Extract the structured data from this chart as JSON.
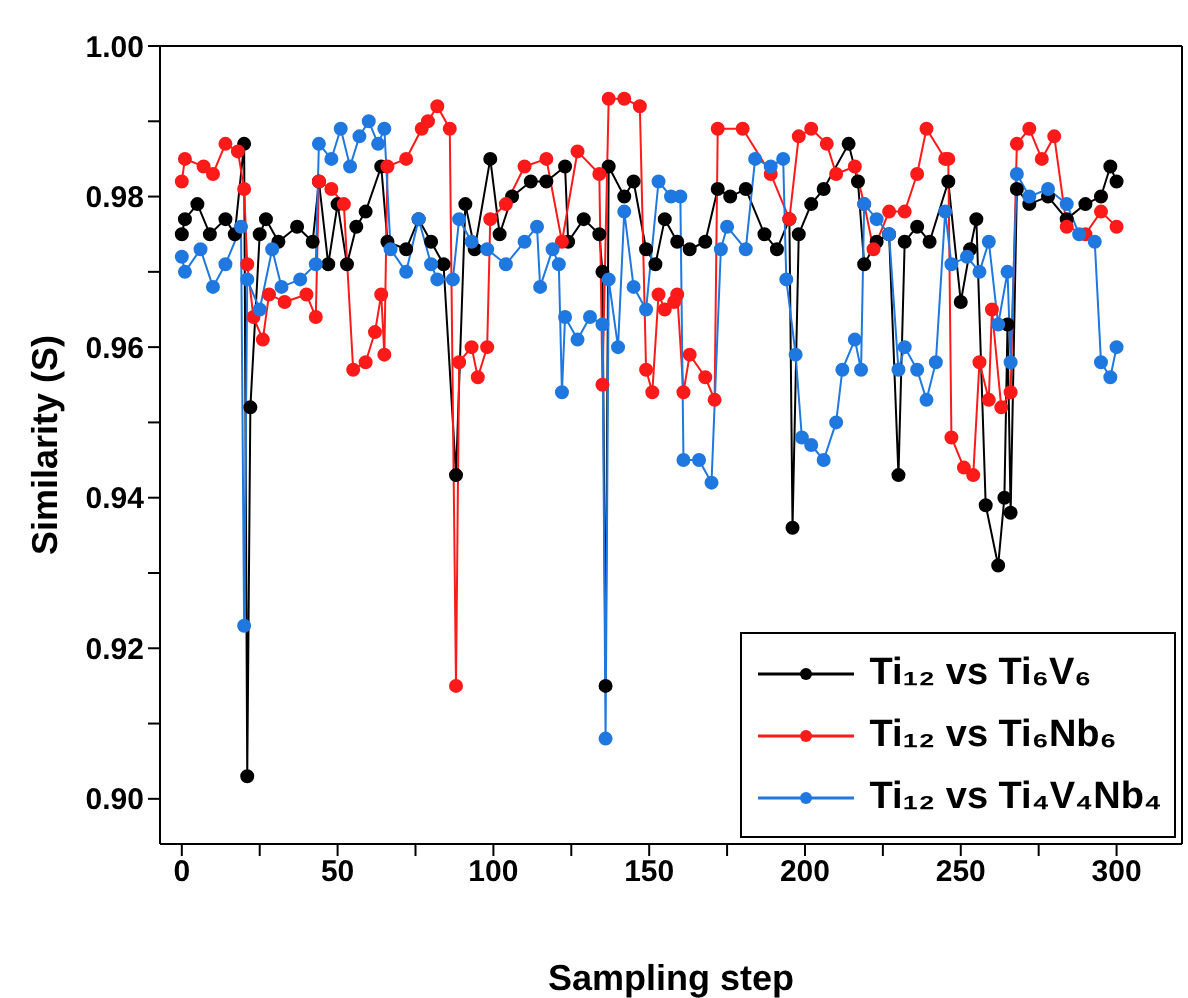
{
  "chart_data": {
    "type": "line",
    "xlabel": "Sampling step",
    "ylabel": "Similarity (S)",
    "marker": "circle",
    "line_style": "solid",
    "legend": "bottom right",
    "grid": false,
    "xlim": [
      -7,
      321
    ],
    "ylim": [
      0.894,
      1.0
    ],
    "xticks": [
      0,
      {
        "value": 25,
        "label": null
      },
      50,
      {
        "value": 75,
        "label": null
      },
      100,
      {
        "value": 125,
        "label": null
      },
      150,
      {
        "value": 175,
        "label": null
      },
      200,
      {
        "value": 225,
        "label": null
      },
      250,
      {
        "value": 275,
        "label": null
      },
      300
    ],
    "yticks": [
      {
        "value": 0.9,
        "label": "0.90"
      },
      {
        "value": 0.91,
        "label": null
      },
      {
        "value": 0.92,
        "label": "0.92"
      },
      {
        "value": 0.93,
        "label": null
      },
      {
        "value": 0.94,
        "label": "0.94"
      },
      {
        "value": 0.95,
        "label": null
      },
      {
        "value": 0.96,
        "label": "0.96"
      },
      {
        "value": 0.97,
        "label": null
      },
      {
        "value": 0.98,
        "label": "0.98"
      },
      {
        "value": 0.99,
        "label": null
      },
      {
        "value": 1.0,
        "label": "1.00"
      }
    ],
    "series": [
      {
        "name": "Ti₁₂ vs Ti₆V₆",
        "color": "#000000",
        "x": [
          0,
          1,
          5,
          9,
          14,
          17,
          20,
          21,
          22,
          25,
          27,
          31,
          37,
          42,
          44,
          47,
          50,
          53,
          56,
          59,
          64,
          66,
          72,
          76,
          80,
          84,
          88,
          91,
          94,
          99,
          102,
          106,
          112,
          117,
          123,
          124,
          129,
          134,
          135,
          136,
          137,
          142,
          145,
          149,
          152,
          155,
          159,
          163,
          168,
          172,
          176,
          181,
          187,
          191,
          195,
          196,
          198,
          202,
          206,
          214,
          217,
          219,
          223,
          227,
          230,
          232,
          236,
          240,
          246,
          250,
          253,
          255,
          258,
          262,
          264,
          265,
          266,
          268,
          272,
          278,
          284,
          290,
          295,
          298,
          300
        ],
        "values": [
          0.975,
          0.977,
          0.979,
          0.975,
          0.977,
          0.975,
          0.987,
          0.903,
          0.952,
          0.975,
          0.977,
          0.974,
          0.976,
          0.974,
          0.982,
          0.971,
          0.979,
          0.971,
          0.976,
          0.978,
          0.984,
          0.974,
          0.973,
          0.977,
          0.974,
          0.971,
          0.943,
          0.979,
          0.973,
          0.985,
          0.975,
          0.98,
          0.982,
          0.982,
          0.984,
          0.974,
          0.977,
          0.975,
          0.97,
          0.915,
          0.984,
          0.98,
          0.982,
          0.973,
          0.971,
          0.977,
          0.974,
          0.973,
          0.974,
          0.981,
          0.98,
          0.981,
          0.975,
          0.973,
          0.977,
          0.936,
          0.975,
          0.979,
          0.981,
          0.987,
          0.982,
          0.971,
          0.974,
          0.975,
          0.943,
          0.974,
          0.976,
          0.974,
          0.982,
          0.966,
          0.973,
          0.977,
          0.939,
          0.931,
          0.94,
          0.963,
          0.938,
          0.981,
          0.979,
          0.98,
          0.977,
          0.979,
          0.98,
          0.984,
          0.982
        ]
      },
      {
        "name": "Ti₁₂ vs Ti₆Nb₆",
        "color": "#ff1a1a",
        "x": [
          0,
          1,
          7,
          10,
          14,
          18,
          20,
          21,
          23,
          26,
          28,
          33,
          40,
          43,
          44,
          48,
          52,
          55,
          59,
          62,
          64,
          65,
          66,
          72,
          77,
          79,
          82,
          86,
          88,
          89,
          93,
          95,
          98,
          99,
          104,
          110,
          117,
          122,
          127,
          134,
          135,
          137,
          142,
          147,
          149,
          151,
          153,
          155,
          158,
          159,
          161,
          163,
          168,
          171,
          172,
          180,
          189,
          195,
          198,
          202,
          207,
          210,
          216,
          219,
          222,
          227,
          232,
          236,
          239,
          245,
          246,
          247,
          251,
          254,
          256,
          259,
          260,
          263,
          266,
          268,
          272,
          276,
          280,
          284,
          290,
          295,
          300
        ],
        "values": [
          0.982,
          0.985,
          0.984,
          0.983,
          0.987,
          0.986,
          0.981,
          0.971,
          0.964,
          0.961,
          0.967,
          0.966,
          0.967,
          0.964,
          0.982,
          0.981,
          0.979,
          0.957,
          0.958,
          0.962,
          0.967,
          0.959,
          0.984,
          0.985,
          0.989,
          0.99,
          0.992,
          0.989,
          0.915,
          0.958,
          0.96,
          0.956,
          0.96,
          0.977,
          0.979,
          0.984,
          0.985,
          0.974,
          0.986,
          0.983,
          0.955,
          0.993,
          0.993,
          0.992,
          0.957,
          0.954,
          0.967,
          0.965,
          0.966,
          0.967,
          0.954,
          0.959,
          0.956,
          0.953,
          0.989,
          0.989,
          0.983,
          0.977,
          0.988,
          0.989,
          0.987,
          0.983,
          0.984,
          0.979,
          0.973,
          0.978,
          0.978,
          0.983,
          0.989,
          0.985,
          0.985,
          0.948,
          0.944,
          0.943,
          0.958,
          0.953,
          0.965,
          0.952,
          0.954,
          0.987,
          0.989,
          0.985,
          0.988,
          0.976,
          0.975,
          0.978,
          0.976
        ]
      },
      {
        "name": "Ti₁₂ vs Ti₄V₄Nb₄",
        "color": "#1f78e0",
        "x": [
          0,
          1,
          6,
          10,
          14,
          19,
          20,
          21,
          25,
          29,
          32,
          38,
          43,
          44,
          48,
          51,
          54,
          57,
          60,
          63,
          65,
          67,
          72,
          76,
          80,
          82,
          87,
          89,
          93,
          98,
          104,
          110,
          114,
          115,
          119,
          121,
          122,
          123,
          127,
          131,
          135,
          136,
          137,
          140,
          142,
          145,
          149,
          153,
          157,
          160,
          161,
          166,
          170,
          173,
          175,
          181,
          184,
          189,
          193,
          194,
          197,
          199,
          202,
          206,
          210,
          212,
          216,
          218,
          219,
          223,
          227,
          230,
          232,
          236,
          239,
          242,
          245,
          247,
          252,
          256,
          259,
          262,
          265,
          266,
          268,
          272,
          278,
          284,
          288,
          293,
          295,
          298,
          300
        ],
        "values": [
          0.972,
          0.97,
          0.973,
          0.968,
          0.971,
          0.976,
          0.923,
          0.969,
          0.965,
          0.973,
          0.968,
          0.969,
          0.971,
          0.987,
          0.985,
          0.989,
          0.984,
          0.988,
          0.99,
          0.987,
          0.989,
          0.973,
          0.97,
          0.977,
          0.971,
          0.969,
          0.969,
          0.977,
          0.974,
          0.973,
          0.971,
          0.974,
          0.976,
          0.968,
          0.973,
          0.971,
          0.954,
          0.964,
          0.961,
          0.964,
          0.963,
          0.908,
          0.969,
          0.96,
          0.978,
          0.968,
          0.965,
          0.982,
          0.98,
          0.98,
          0.945,
          0.945,
          0.942,
          0.973,
          0.976,
          0.973,
          0.985,
          0.984,
          0.985,
          0.969,
          0.959,
          0.948,
          0.947,
          0.945,
          0.95,
          0.957,
          0.961,
          0.957,
          0.979,
          0.977,
          0.975,
          0.957,
          0.96,
          0.957,
          0.953,
          0.958,
          0.978,
          0.971,
          0.972,
          0.97,
          0.974,
          0.963,
          0.97,
          0.958,
          0.983,
          0.98,
          0.981,
          0.979,
          0.975,
          0.974,
          0.958,
          0.956,
          0.96
        ]
      }
    ]
  }
}
